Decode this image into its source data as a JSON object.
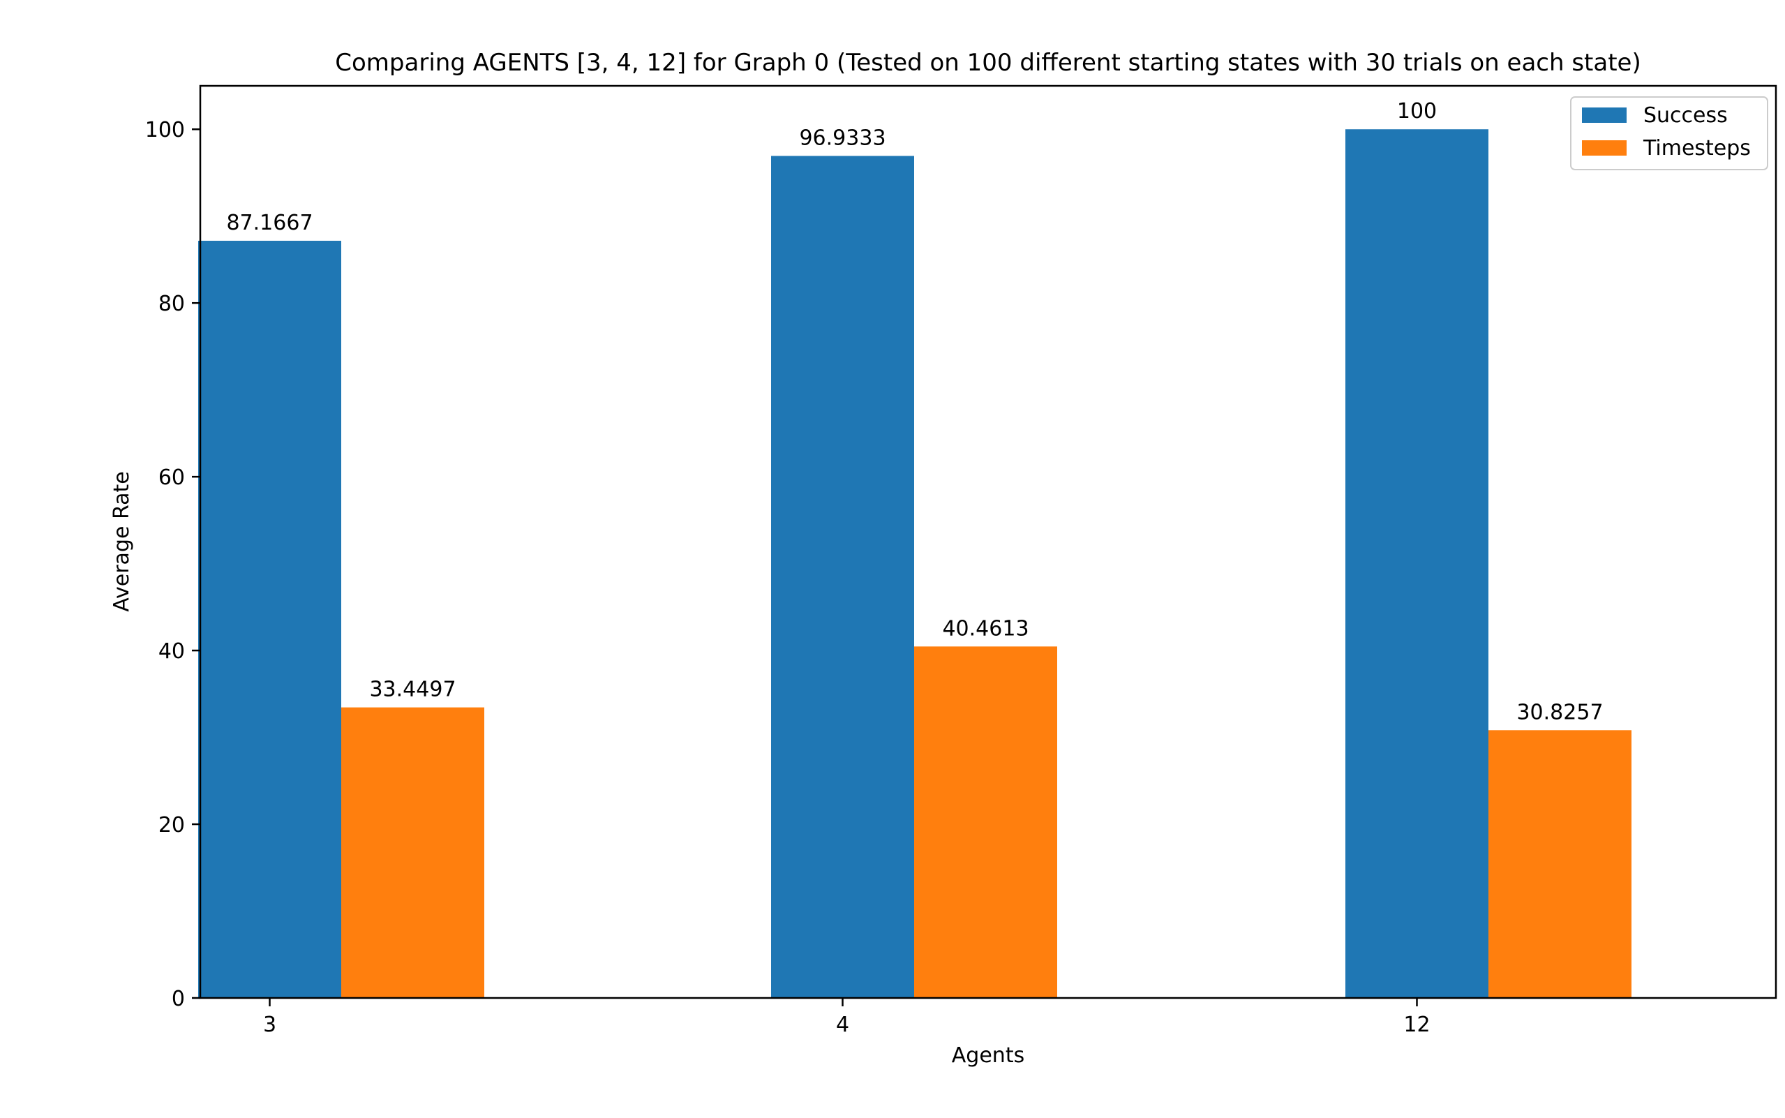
{
  "chart_data": {
    "type": "bar",
    "title": "Comparing AGENTS [3, 4, 12] for Graph 0 (Tested on 100 different starting states with 30 trials on each state)",
    "xlabel": "Agents",
    "ylabel": "Average Rate",
    "categories": [
      "3",
      "4",
      "12"
    ],
    "ylim": [
      0,
      105
    ],
    "yticks": [
      0,
      20,
      40,
      60,
      80,
      100
    ],
    "grid": false,
    "legend_position": "top-right",
    "series": [
      {
        "name": "Success",
        "color": "#1f77b4",
        "values": [
          87.1667,
          96.9333,
          100
        ],
        "labels": [
          "87.1667",
          "96.9333",
          "100"
        ]
      },
      {
        "name": "Timesteps",
        "color": "#ff7f0e",
        "values": [
          33.4497,
          40.4613,
          30.8257
        ],
        "labels": [
          "33.4497",
          "40.4613",
          "30.8257"
        ]
      }
    ]
  }
}
